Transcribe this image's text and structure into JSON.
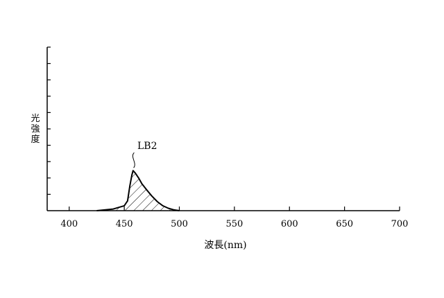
{
  "chart_data": {
    "type": "area",
    "xlabel": "波長(nm)",
    "ylabel": "光強度",
    "xlim": [
      380,
      700
    ],
    "ylim": [
      0,
      1
    ],
    "x_ticks": [
      400,
      450,
      500,
      550,
      600,
      650,
      700
    ],
    "y_minor_tick_count": 10,
    "grid": false,
    "fill": "hatched",
    "series": [
      {
        "name": "LB2",
        "x": [
          425,
          440,
          450,
          453,
          455,
          457,
          458,
          460,
          463,
          466,
          470,
          475,
          480,
          485,
          490,
          495,
          500
        ],
        "y": [
          0.0,
          0.01,
          0.03,
          0.06,
          0.15,
          0.22,
          0.245,
          0.23,
          0.2,
          0.165,
          0.13,
          0.09,
          0.055,
          0.03,
          0.015,
          0.005,
          0.0
        ]
      }
    ],
    "annotations": [
      {
        "text": "LB2",
        "x": 458,
        "y": 0.38
      }
    ]
  }
}
